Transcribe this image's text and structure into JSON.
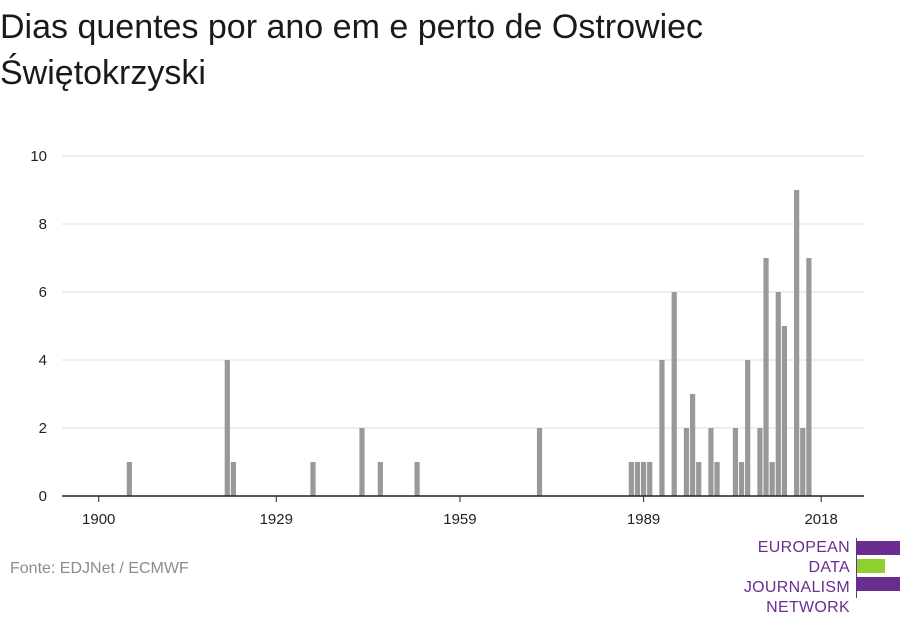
{
  "title": "Dias quentes por ano em e perto de Ostrowiec Świętokrzyski",
  "source": "Fonte: EDJNet / ECMWF",
  "logo": {
    "lines": [
      "EUROPEAN",
      "DATA JOURNALISM",
      "NETWORK"
    ],
    "colors": {
      "primary": "#6b2d8f",
      "accent": "#8ed12e"
    }
  },
  "chart_data": {
    "type": "bar",
    "title": "Dias quentes por ano em e perto de Ostrowiec Świętokrzyski",
    "xlabel": "",
    "ylabel": "",
    "xlim": [
      1894,
      2025
    ],
    "ylim": [
      0,
      10
    ],
    "x_ticks": [
      1900,
      1929,
      1959,
      1989,
      2018
    ],
    "y_ticks": [
      0,
      2,
      4,
      6,
      8,
      10
    ],
    "grid": true,
    "bar_color": "#999999",
    "x": [
      1905,
      1921,
      1922,
      1935,
      1943,
      1946,
      1952,
      1972,
      1987,
      1988,
      1989,
      1990,
      1992,
      1994,
      1996,
      1997,
      1998,
      2000,
      2001,
      2004,
      2005,
      2006,
      2008,
      2009,
      2010,
      2011,
      2012,
      2014,
      2015,
      2016
    ],
    "values": [
      1,
      4,
      1,
      1,
      2,
      1,
      1,
      2,
      1,
      1,
      1,
      1,
      4,
      6,
      2,
      3,
      1,
      2,
      1,
      2,
      1,
      4,
      2,
      7,
      1,
      6,
      5,
      9,
      2,
      7
    ]
  }
}
